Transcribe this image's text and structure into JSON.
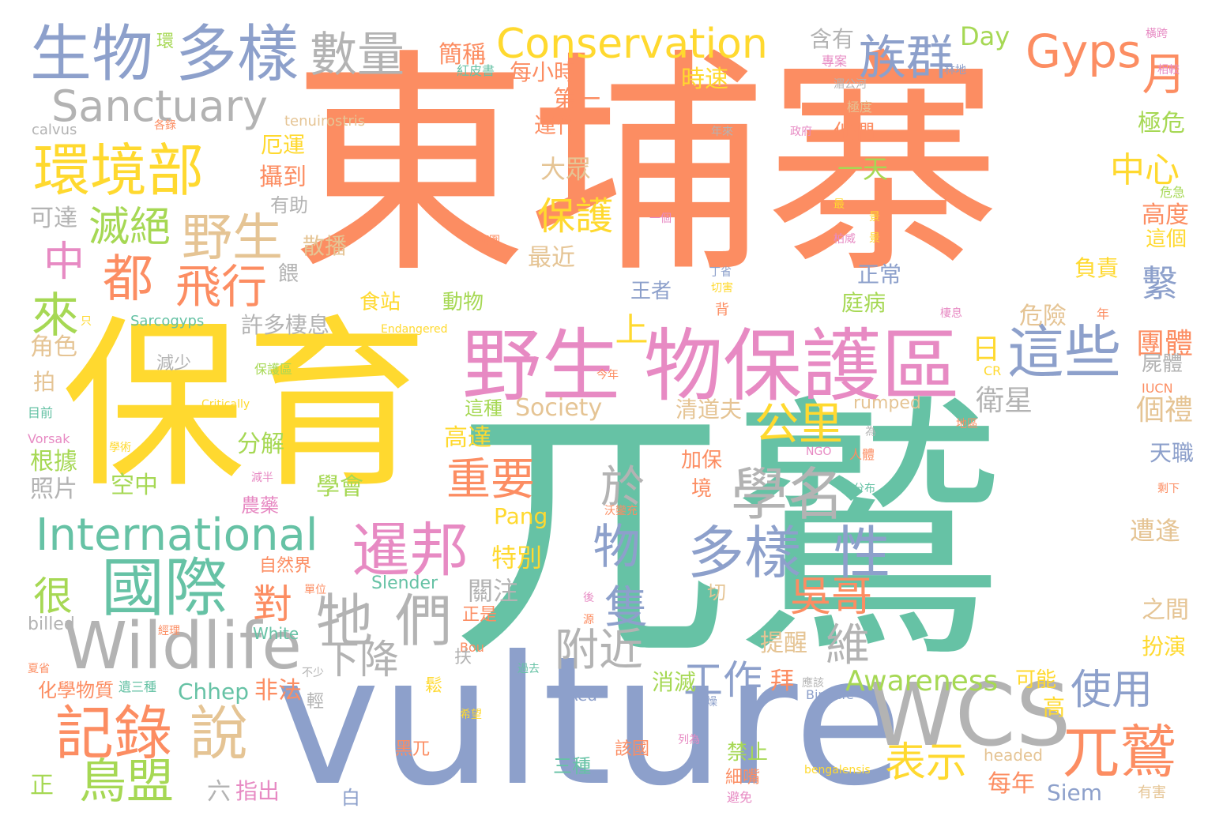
{
  "palette": {
    "orange": "#fc8d62",
    "teal": "#66c2a5",
    "blue": "#8da0cb",
    "pink": "#e78ac3",
    "green": "#a6d854",
    "yellow": "#ffd92f",
    "tan": "#e5c494",
    "gray": "#b3b3b3"
  },
  "words": [
    "東埔寨",
    "保育",
    "兀鷲",
    "vulture",
    "野生",
    "物保護區",
    "生物",
    "多樣",
    "數量",
    "族群",
    "Gyps",
    "月",
    "Conservation",
    "Sanctuary",
    "環境部",
    "滅絕",
    "野生",
    "都",
    "飛行",
    "中",
    "來",
    "這些",
    "學名",
    "多樣",
    "性",
    "牠",
    "們",
    "International",
    "國際",
    "暹邦",
    "物",
    "重要",
    "公里",
    "WCS",
    "Wildlife",
    "記錄",
    "說",
    "鳥盟",
    "兀鷲",
    "吳哥",
    "表示",
    "使用",
    "隻",
    "附近",
    "下降",
    "維",
    "工作",
    "Awareness",
    "於",
    "保護",
    "中心",
    "繫",
    "上",
    "日",
    "團體",
    "衛星",
    "個禮",
    "天職",
    "遭逢",
    "之間",
    "扮演",
    "很",
    "對",
    "簡稱",
    "每小時",
    "時速",
    "第一",
    "運作",
    "大眾",
    "Day",
    "含有",
    "極危",
    "高度",
    "這個",
    "負責",
    "危急",
    "極度",
    "正常",
    "危險",
    "庭病",
    "王者",
    "動物",
    "食站",
    "許多棲息",
    "減少",
    "tenuirostris",
    "calvus",
    "厄運",
    "攝到",
    "有助",
    "可達",
    "散播",
    "餵",
    "最近",
    "一天",
    "角色",
    "拍",
    "目前",
    "根據",
    "照片",
    "分解",
    "空中",
    "學會",
    "特別",
    "Society",
    "清道夫",
    "rumped",
    "這種",
    "高達",
    "Pang",
    "關注",
    "自然界",
    "農藥",
    "Slender",
    "White",
    "billed",
    "提醒",
    "消滅",
    "Chhep",
    "非法",
    "化學物質",
    "六",
    "指出",
    "白",
    "黑兀",
    "三種",
    "禁止",
    "細嘴",
    "避免",
    "每年",
    "Siem",
    "有害",
    "正",
    "IUCN",
    "CR",
    "Critically",
    "Endangered",
    "Sarcogyps",
    "Vorsak",
    "BirdLife",
    "NGO",
    "Red",
    "Bou",
    "環",
    "紅皮書",
    "各錄",
    "專案",
    "湄公河",
    "林地",
    "橫跨",
    "相較",
    "政府",
    "年來",
    "他們",
    "範圍",
    "一個",
    "丁省",
    "切害",
    "背",
    "棲息",
    "年",
    "今年",
    "為",
    "地區",
    "分布",
    "剩下",
    "沃鑾充",
    "後",
    "過去",
    "應該",
    "不少",
    "鬆",
    "扶",
    "輕",
    "拜",
    "可能",
    "高",
    "該國",
    "列為",
    "希望",
    "乾燥",
    "屍體",
    "景",
    "柏威",
    "單位",
    "經理",
    "源",
    "減半",
    "學術",
    "遺三種",
    "夏省",
    "bengalensis",
    "headed",
    "加保",
    "境",
    "切",
    "正是",
    "景",
    "最",
    "人體",
    "只",
    "保護區"
  ]
}
